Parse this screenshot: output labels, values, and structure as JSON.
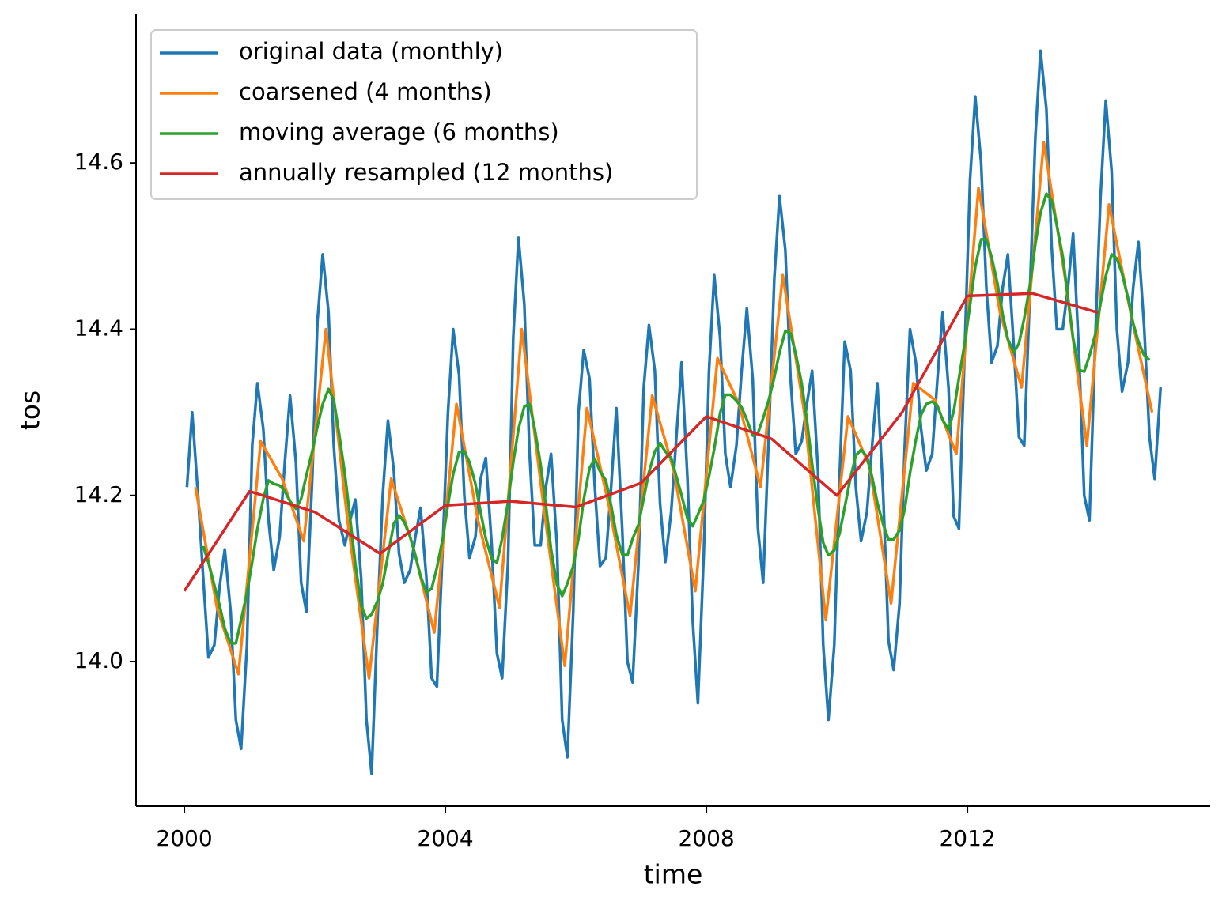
{
  "chart_data": {
    "type": "line",
    "xlabel": "time",
    "ylabel": "tos",
    "xlim": [
      1999.26,
      2015.72
    ],
    "ylim": [
      13.826,
      14.779
    ],
    "xticks": [
      2000,
      2004,
      2008,
      2012
    ],
    "yticks": [
      {
        "value": 14,
        "label": "14.0"
      },
      14.2,
      14.4,
      14.6
    ],
    "legend": "upper left",
    "x": [
      2000.04,
      2000.12,
      2000.21,
      2000.29,
      2000.37,
      2000.46,
      2000.54,
      2000.62,
      2000.71,
      2000.79,
      2000.87,
      2000.96,
      2001.04,
      2001.12,
      2001.21,
      2001.29,
      2001.37,
      2001.46,
      2001.54,
      2001.62,
      2001.71,
      2001.79,
      2001.87,
      2001.96,
      2002.04,
      2002.12,
      2002.21,
      2002.29,
      2002.37,
      2002.46,
      2002.54,
      2002.62,
      2002.71,
      2002.79,
      2002.87,
      2002.96,
      2003.04,
      2003.12,
      2003.21,
      2003.29,
      2003.37,
      2003.46,
      2003.54,
      2003.62,
      2003.71,
      2003.79,
      2003.87,
      2003.96,
      2004.04,
      2004.12,
      2004.21,
      2004.29,
      2004.37,
      2004.46,
      2004.54,
      2004.62,
      2004.71,
      2004.79,
      2004.87,
      2004.96,
      2005.04,
      2005.12,
      2005.21,
      2005.29,
      2005.37,
      2005.46,
      2005.54,
      2005.62,
      2005.71,
      2005.79,
      2005.87,
      2005.96,
      2006.04,
      2006.12,
      2006.21,
      2006.29,
      2006.37,
      2006.46,
      2006.54,
      2006.62,
      2006.71,
      2006.79,
      2006.87,
      2006.96,
      2007.04,
      2007.12,
      2007.21,
      2007.29,
      2007.37,
      2007.46,
      2007.54,
      2007.62,
      2007.71,
      2007.79,
      2007.87,
      2007.96,
      2008.04,
      2008.12,
      2008.21,
      2008.29,
      2008.37,
      2008.46,
      2008.54,
      2008.62,
      2008.71,
      2008.79,
      2008.87,
      2008.96,
      2009.04,
      2009.12,
      2009.21,
      2009.29,
      2009.37,
      2009.46,
      2009.54,
      2009.62,
      2009.71,
      2009.79,
      2009.87,
      2009.96,
      2010.04,
      2010.12,
      2010.21,
      2010.29,
      2010.37,
      2010.46,
      2010.54,
      2010.62,
      2010.71,
      2010.79,
      2010.87,
      2010.96,
      2011.04,
      2011.12,
      2011.21,
      2011.29,
      2011.37,
      2011.46,
      2011.54,
      2011.62,
      2011.71,
      2011.79,
      2011.87,
      2011.96,
      2012.04,
      2012.12,
      2012.21,
      2012.29,
      2012.37,
      2012.46,
      2012.54,
      2012.62,
      2012.71,
      2012.79,
      2012.87,
      2012.96,
      2013.04,
      2013.12,
      2013.21,
      2013.29,
      2013.37,
      2013.46,
      2013.54,
      2013.62,
      2013.71,
      2013.79,
      2013.87,
      2013.96,
      2014.04,
      2014.12,
      2014.21,
      2014.29,
      2014.37,
      2014.46,
      2014.54,
      2014.62,
      2014.71,
      2014.79,
      2014.87,
      2014.96
    ],
    "series": [
      {
        "name": "original data (monthly)",
        "color": "#1f77b4",
        "values": [
          14.21,
          14.3,
          14.2,
          14.1,
          14.005,
          14.02,
          14.09,
          14.135,
          14.06,
          13.93,
          13.895,
          14.02,
          14.26,
          14.335,
          14.28,
          14.17,
          14.11,
          14.15,
          14.24,
          14.32,
          14.24,
          14.095,
          14.06,
          14.22,
          14.41,
          14.49,
          14.42,
          14.26,
          14.17,
          14.14,
          14.17,
          14.195,
          14.1,
          13.93,
          13.865,
          14.05,
          14.2,
          14.29,
          14.23,
          14.13,
          14.095,
          14.11,
          14.15,
          14.185,
          14.1,
          13.98,
          13.97,
          14.14,
          14.3,
          14.4,
          14.345,
          14.2,
          14.125,
          14.15,
          14.22,
          14.245,
          14.14,
          14.01,
          13.98,
          14.12,
          14.39,
          14.51,
          14.43,
          14.25,
          14.14,
          14.14,
          14.21,
          14.25,
          14.14,
          13.93,
          13.885,
          14.06,
          14.3,
          14.375,
          14.34,
          14.21,
          14.115,
          14.125,
          14.21,
          14.305,
          14.16,
          14.0,
          13.975,
          14.12,
          14.33,
          14.405,
          14.35,
          14.19,
          14.12,
          14.18,
          14.27,
          14.36,
          14.22,
          14.05,
          13.95,
          14.13,
          14.35,
          14.465,
          14.39,
          14.25,
          14.21,
          14.26,
          14.35,
          14.425,
          14.34,
          14.16,
          14.095,
          14.28,
          14.46,
          14.56,
          14.495,
          14.34,
          14.25,
          14.265,
          14.31,
          14.35,
          14.23,
          14.02,
          13.93,
          14.02,
          14.22,
          14.385,
          14.35,
          14.21,
          14.145,
          14.18,
          14.26,
          14.335,
          14.2,
          14.025,
          13.99,
          14.07,
          14.26,
          14.4,
          14.36,
          14.28,
          14.23,
          14.25,
          14.34,
          14.42,
          14.33,
          14.175,
          14.16,
          14.38,
          14.58,
          14.68,
          14.6,
          14.45,
          14.36,
          14.38,
          14.45,
          14.49,
          14.38,
          14.27,
          14.26,
          14.45,
          14.63,
          14.735,
          14.665,
          14.5,
          14.4,
          14.4,
          14.45,
          14.515,
          14.37,
          14.2,
          14.17,
          14.39,
          14.56,
          14.675,
          14.59,
          14.4,
          14.325,
          14.36,
          14.45,
          14.505,
          14.4,
          14.27,
          14.22,
          14.33
        ]
      },
      {
        "name": "coarsened (4 months)",
        "color": "#ff7f0e",
        "x": [
          2000.17,
          2000.5,
          2000.83,
          2001.17,
          2001.5,
          2001.83,
          2002.17,
          2002.5,
          2002.83,
          2003.17,
          2003.5,
          2003.83,
          2004.17,
          2004.5,
          2004.83,
          2005.17,
          2005.5,
          2005.83,
          2006.17,
          2006.5,
          2006.83,
          2007.17,
          2007.5,
          2007.83,
          2008.17,
          2008.5,
          2008.83,
          2009.17,
          2009.5,
          2009.83,
          2010.17,
          2010.5,
          2010.83,
          2011.17,
          2011.5,
          2011.83,
          2012.17,
          2012.5,
          2012.83,
          2013.17,
          2013.5,
          2013.83,
          2014.17,
          2014.5,
          2014.83
        ],
        "values": [
          14.21,
          14.065,
          13.985,
          14.265,
          14.22,
          14.145,
          14.4,
          14.17,
          13.98,
          14.22,
          14.14,
          14.035,
          14.31,
          14.17,
          14.065,
          14.4,
          14.19,
          13.995,
          14.305,
          14.19,
          14.055,
          14.32,
          14.23,
          14.085,
          14.365,
          14.31,
          14.21,
          14.465,
          14.3,
          14.05,
          14.295,
          14.235,
          14.07,
          14.335,
          14.315,
          14.25,
          14.57,
          14.42,
          14.33,
          14.625,
          14.46,
          14.26,
          14.55,
          14.42,
          14.3
        ]
      },
      {
        "name": "moving average (6 months)",
        "color": "#2ca02c",
        "values": [
          null,
          null,
          null,
          14.139,
          14.119,
          14.092,
          14.068,
          14.04,
          14.022,
          14.022,
          14.05,
          14.083,
          14.12,
          14.16,
          14.196,
          14.218,
          14.214,
          14.212,
          14.205,
          14.193,
          14.184,
          14.196,
          14.224,
          14.253,
          14.283,
          14.31,
          14.328,
          14.315,
          14.275,
          14.226,
          14.173,
          14.118,
          14.067,
          14.052,
          14.057,
          14.073,
          14.094,
          14.128,
          14.166,
          14.176,
          14.168,
          14.15,
          14.128,
          14.103,
          14.083,
          14.088,
          14.113,
          14.148,
          14.189,
          14.226,
          14.252,
          14.253,
          14.24,
          14.214,
          14.18,
          14.148,
          14.124,
          14.119,
          14.148,
          14.192,
          14.24,
          14.28,
          14.307,
          14.31,
          14.28,
          14.237,
          14.188,
          14.135,
          14.093,
          14.079,
          14.094,
          14.115,
          14.148,
          14.195,
          14.233,
          14.244,
          14.229,
          14.218,
          14.188,
          14.153,
          14.129,
          14.128,
          14.148,
          14.165,
          14.197,
          14.228,
          14.253,
          14.263,
          14.253,
          14.245,
          14.223,
          14.2,
          14.172,
          14.163,
          14.177,
          14.194,
          14.223,
          14.256,
          14.299,
          14.321,
          14.321,
          14.314,
          14.306,
          14.291,
          14.272,
          14.275,
          14.293,
          14.316,
          14.342,
          14.372,
          14.398,
          14.395,
          14.37,
          14.335,
          14.291,
          14.238,
          14.184,
          14.143,
          14.128,
          14.134,
          14.154,
          14.186,
          14.222,
          14.248,
          14.255,
          14.247,
          14.222,
          14.191,
          14.165,
          14.147,
          14.147,
          14.158,
          14.184,
          14.227,
          14.267,
          14.297,
          14.31,
          14.313,
          14.308,
          14.291,
          14.279,
          14.301,
          14.341,
          14.384,
          14.429,
          14.475,
          14.508,
          14.508,
          14.487,
          14.455,
          14.418,
          14.388,
          14.372,
          14.383,
          14.413,
          14.454,
          14.502,
          14.54,
          14.563,
          14.555,
          14.525,
          14.488,
          14.439,
          14.389,
          14.351,
          14.349,
          14.368,
          14.394,
          14.431,
          14.464,
          14.49,
          14.485,
          14.467,
          14.438,
          14.407,
          14.385,
          14.368,
          14.363,
          null,
          null
        ]
      },
      {
        "name": "annually resampled (12 months)",
        "color": "#d62728",
        "x": [
          2000,
          2001,
          2002,
          2003,
          2004,
          2005,
          2006,
          2007,
          2008,
          2009,
          2010,
          2011,
          2012,
          2013,
          2014
        ],
        "values": [
          14.085,
          14.205,
          14.18,
          14.13,
          14.188,
          14.193,
          14.186,
          14.215,
          14.295,
          14.268,
          14.2,
          14.3,
          14.44,
          14.443,
          14.42
        ]
      }
    ]
  }
}
